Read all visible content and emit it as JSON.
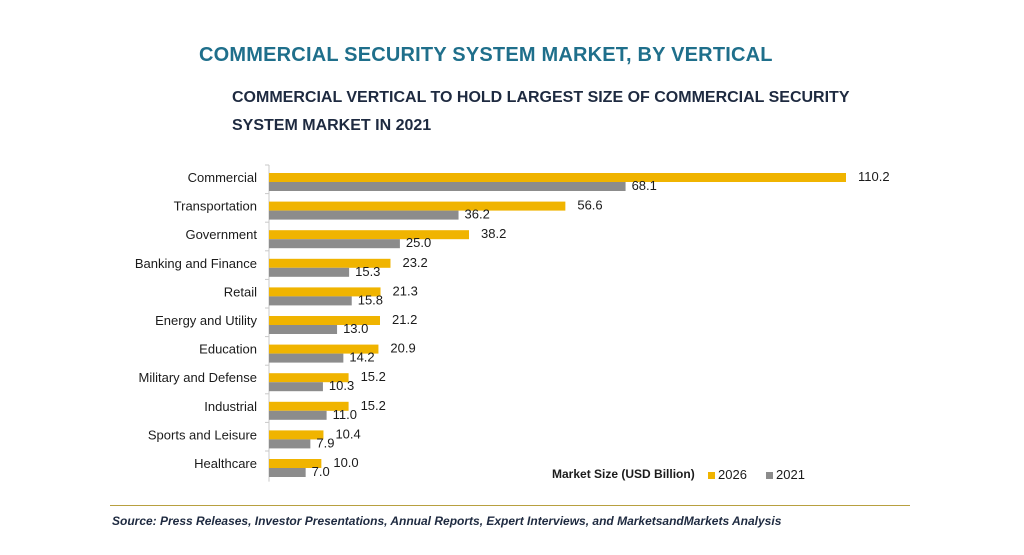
{
  "header": {
    "title": "COMMERCIAL SECURITY SYSTEM MARKET, BY VERTICAL",
    "subtitle": "COMMERCIAL VERTICAL TO HOLD LARGEST SIZE OF COMMERCIAL SECURITY SYSTEM MARKET IN 2021"
  },
  "footer": {
    "source": "Source: Press Releases, Investor Presentations, Annual Reports, Expert Interviews, and MarketsandMarkets Analysis"
  },
  "chart_data": {
    "type": "bar",
    "orientation": "horizontal",
    "title": "COMMERCIAL SECURITY SYSTEM MARKET, BY VERTICAL",
    "subtitle": "COMMERCIAL VERTICAL TO HOLD LARGEST SIZE OF COMMERCIAL SECURITY SYSTEM MARKET IN 2021",
    "categories": [
      "Commercial",
      "Transportation",
      "Government",
      "Banking and Finance",
      "Retail",
      "Energy and Utility",
      "Education",
      "Military and Defense",
      "Industrial",
      "Sports and Leisure",
      "Healthcare"
    ],
    "series": [
      {
        "name": "2026",
        "color": "#f0b400",
        "values": [
          110.2,
          56.6,
          38.2,
          23.2,
          21.3,
          21.2,
          20.9,
          15.2,
          15.2,
          10.4,
          10.0
        ]
      },
      {
        "name": "2021",
        "color": "#8c8c8c",
        "values": [
          68.1,
          36.2,
          25.0,
          15.3,
          15.8,
          13.0,
          14.2,
          10.3,
          11.0,
          7.9,
          7.0
        ]
      }
    ],
    "value_labels": {
      "2026": [
        "110.2",
        "56.6",
        "38.2",
        "23.2",
        "21.3",
        "21.2",
        "20.9",
        "15.2",
        "15.2",
        "10.4",
        "10.0"
      ],
      "2021": [
        "68.1",
        "36.2",
        "25.0",
        "15.3",
        "15.8",
        "13.0",
        "14.2",
        "10.3",
        "11.0",
        "7.9",
        "7.0"
      ]
    },
    "xlim": [
      0,
      110.2
    ],
    "grid": false,
    "legend": {
      "title": "Market Size (USD Billion)",
      "placement": "bottom-right"
    }
  }
}
